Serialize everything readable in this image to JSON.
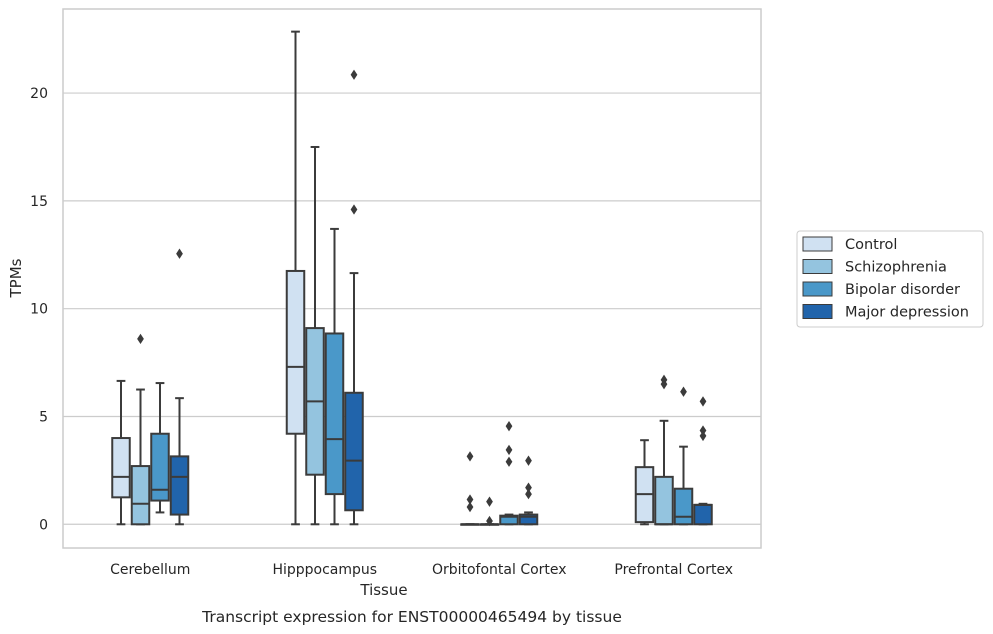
{
  "chart_data": {
    "type": "box",
    "caption": "Transcript expression for ENST00000465494 by tissue",
    "xlabel": "Tissue",
    "ylabel": "TPMs",
    "ylim": [
      -1.1,
      23.9
    ],
    "yticks": [
      0,
      5,
      10,
      15,
      20
    ],
    "grid": "horizontal",
    "legend_placement": "right",
    "categories": [
      "Cerebellum",
      "Hipppocampus",
      "Orbitofontal Cortex",
      "Prefrontal Cortex"
    ],
    "series": [
      {
        "name": "Control",
        "color": "#d0e1f2",
        "boxes": [
          {
            "whislo": 0,
            "q1": 1.25,
            "med": 2.2,
            "q3": 4.0,
            "whishi": 6.65,
            "fliers": []
          },
          {
            "whislo": 0,
            "q1": 4.2,
            "med": 7.3,
            "q3": 11.75,
            "whishi": 22.85,
            "fliers": []
          },
          {
            "whislo": 0,
            "q1": 0,
            "med": 0,
            "q3": 0,
            "whishi": 0,
            "fliers": [
              3.15,
              1.15,
              0.8
            ]
          },
          {
            "whislo": 0,
            "q1": 0.1,
            "med": 1.4,
            "q3": 2.65,
            "whishi": 3.9,
            "fliers": []
          }
        ]
      },
      {
        "name": "Schizophrenia",
        "color": "#94c4df",
        "boxes": [
          {
            "whislo": 0,
            "q1": 0,
            "med": 0.95,
            "q3": 2.7,
            "whishi": 6.25,
            "fliers": [
              8.6
            ]
          },
          {
            "whislo": 0,
            "q1": 2.3,
            "med": 5.7,
            "q3": 9.1,
            "whishi": 17.5,
            "fliers": []
          },
          {
            "whislo": 0,
            "q1": 0,
            "med": 0,
            "q3": 0,
            "whishi": 0,
            "fliers": [
              1.05,
              0.15
            ]
          },
          {
            "whislo": 0,
            "q1": 0,
            "med": 0,
            "q3": 2.2,
            "whishi": 4.8,
            "fliers": [
              6.7,
              6.5
            ]
          }
        ]
      },
      {
        "name": "Bipolar disorder",
        "color": "#4a98c9",
        "boxes": [
          {
            "whislo": 0.55,
            "q1": 1.1,
            "med": 1.6,
            "q3": 4.2,
            "whishi": 6.55,
            "fliers": []
          },
          {
            "whislo": 0,
            "q1": 1.4,
            "med": 3.95,
            "q3": 8.85,
            "whishi": 13.7,
            "fliers": []
          },
          {
            "whislo": 0,
            "q1": 0,
            "med": 0.35,
            "q3": 0.4,
            "whishi": 0.45,
            "fliers": [
              4.55,
              3.45,
              2.9
            ]
          },
          {
            "whislo": 0,
            "q1": 0,
            "med": 0.35,
            "q3": 1.65,
            "whishi": 3.6,
            "fliers": [
              6.15
            ]
          }
        ]
      },
      {
        "name": "Major depression",
        "color": "#2164ab",
        "boxes": [
          {
            "whislo": 0,
            "q1": 0.45,
            "med": 2.2,
            "q3": 3.15,
            "whishi": 5.85,
            "fliers": [
              12.55
            ]
          },
          {
            "whislo": 0,
            "q1": 0.65,
            "med": 2.95,
            "q3": 6.1,
            "whishi": 11.65,
            "fliers": [
              20.85,
              14.6
            ]
          },
          {
            "whislo": 0,
            "q1": 0,
            "med": 0.35,
            "q3": 0.45,
            "whishi": 0.55,
            "fliers": [
              2.95,
              1.7,
              1.4
            ]
          },
          {
            "whislo": 0,
            "q1": 0,
            "med": 0.9,
            "q3": 0.9,
            "whishi": 0.95,
            "fliers": [
              5.7,
              4.35,
              4.1
            ]
          }
        ]
      }
    ]
  }
}
